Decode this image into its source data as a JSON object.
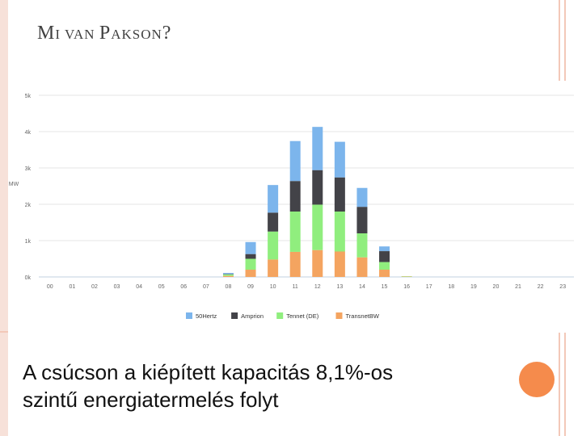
{
  "slide": {
    "title_parts": [
      "M",
      "I VAN ",
      "P",
      "AKSON",
      "?"
    ],
    "caption_line1": "A csúcson a kiépített kapacitás 8,1%-os",
    "caption_line2": "szintű energiatermelés folyt"
  },
  "chart_data": {
    "type": "bar",
    "stacked": true,
    "ylabel": "MW",
    "y_ticks": [
      "0k",
      "1k",
      "2k",
      "3k",
      "4k",
      "5k"
    ],
    "ylim": [
      0,
      5000
    ],
    "categories": [
      "00",
      "01",
      "02",
      "03",
      "04",
      "05",
      "06",
      "07",
      "08",
      "09",
      "10",
      "11",
      "12",
      "13",
      "14",
      "15",
      "16",
      "17",
      "18",
      "19",
      "20",
      "21",
      "22",
      "23"
    ],
    "series": [
      {
        "name": "TransnetBW",
        "color": "#f4a460",
        "values": [
          0,
          0,
          0,
          0,
          0,
          0,
          0,
          0,
          30,
          200,
          480,
          690,
          740,
          700,
          540,
          200,
          10,
          0,
          0,
          0,
          0,
          0,
          0,
          0
        ]
      },
      {
        "name": "Tennet (DE)",
        "color": "#90ee7e",
        "values": [
          0,
          0,
          0,
          0,
          0,
          0,
          0,
          0,
          40,
          300,
          770,
          1110,
          1250,
          1100,
          660,
          210,
          10,
          0,
          0,
          0,
          0,
          0,
          0,
          0
        ]
      },
      {
        "name": "Amprion",
        "color": "#434348",
        "values": [
          0,
          0,
          0,
          0,
          0,
          0,
          0,
          0,
          10,
          130,
          520,
          840,
          950,
          940,
          730,
          300,
          0,
          0,
          0,
          0,
          0,
          0,
          0,
          0
        ]
      },
      {
        "name": "50Hertz",
        "color": "#7cb5ec",
        "values": [
          0,
          0,
          0,
          0,
          0,
          0,
          0,
          0,
          30,
          330,
          760,
          1100,
          1190,
          980,
          520,
          130,
          0,
          0,
          0,
          0,
          0,
          0,
          0,
          0
        ]
      }
    ],
    "legend_order": [
      "50Hertz",
      "Amprion",
      "Tennet (DE)",
      "TransnetBW"
    ],
    "legend_position": "bottom",
    "grid": true
  }
}
